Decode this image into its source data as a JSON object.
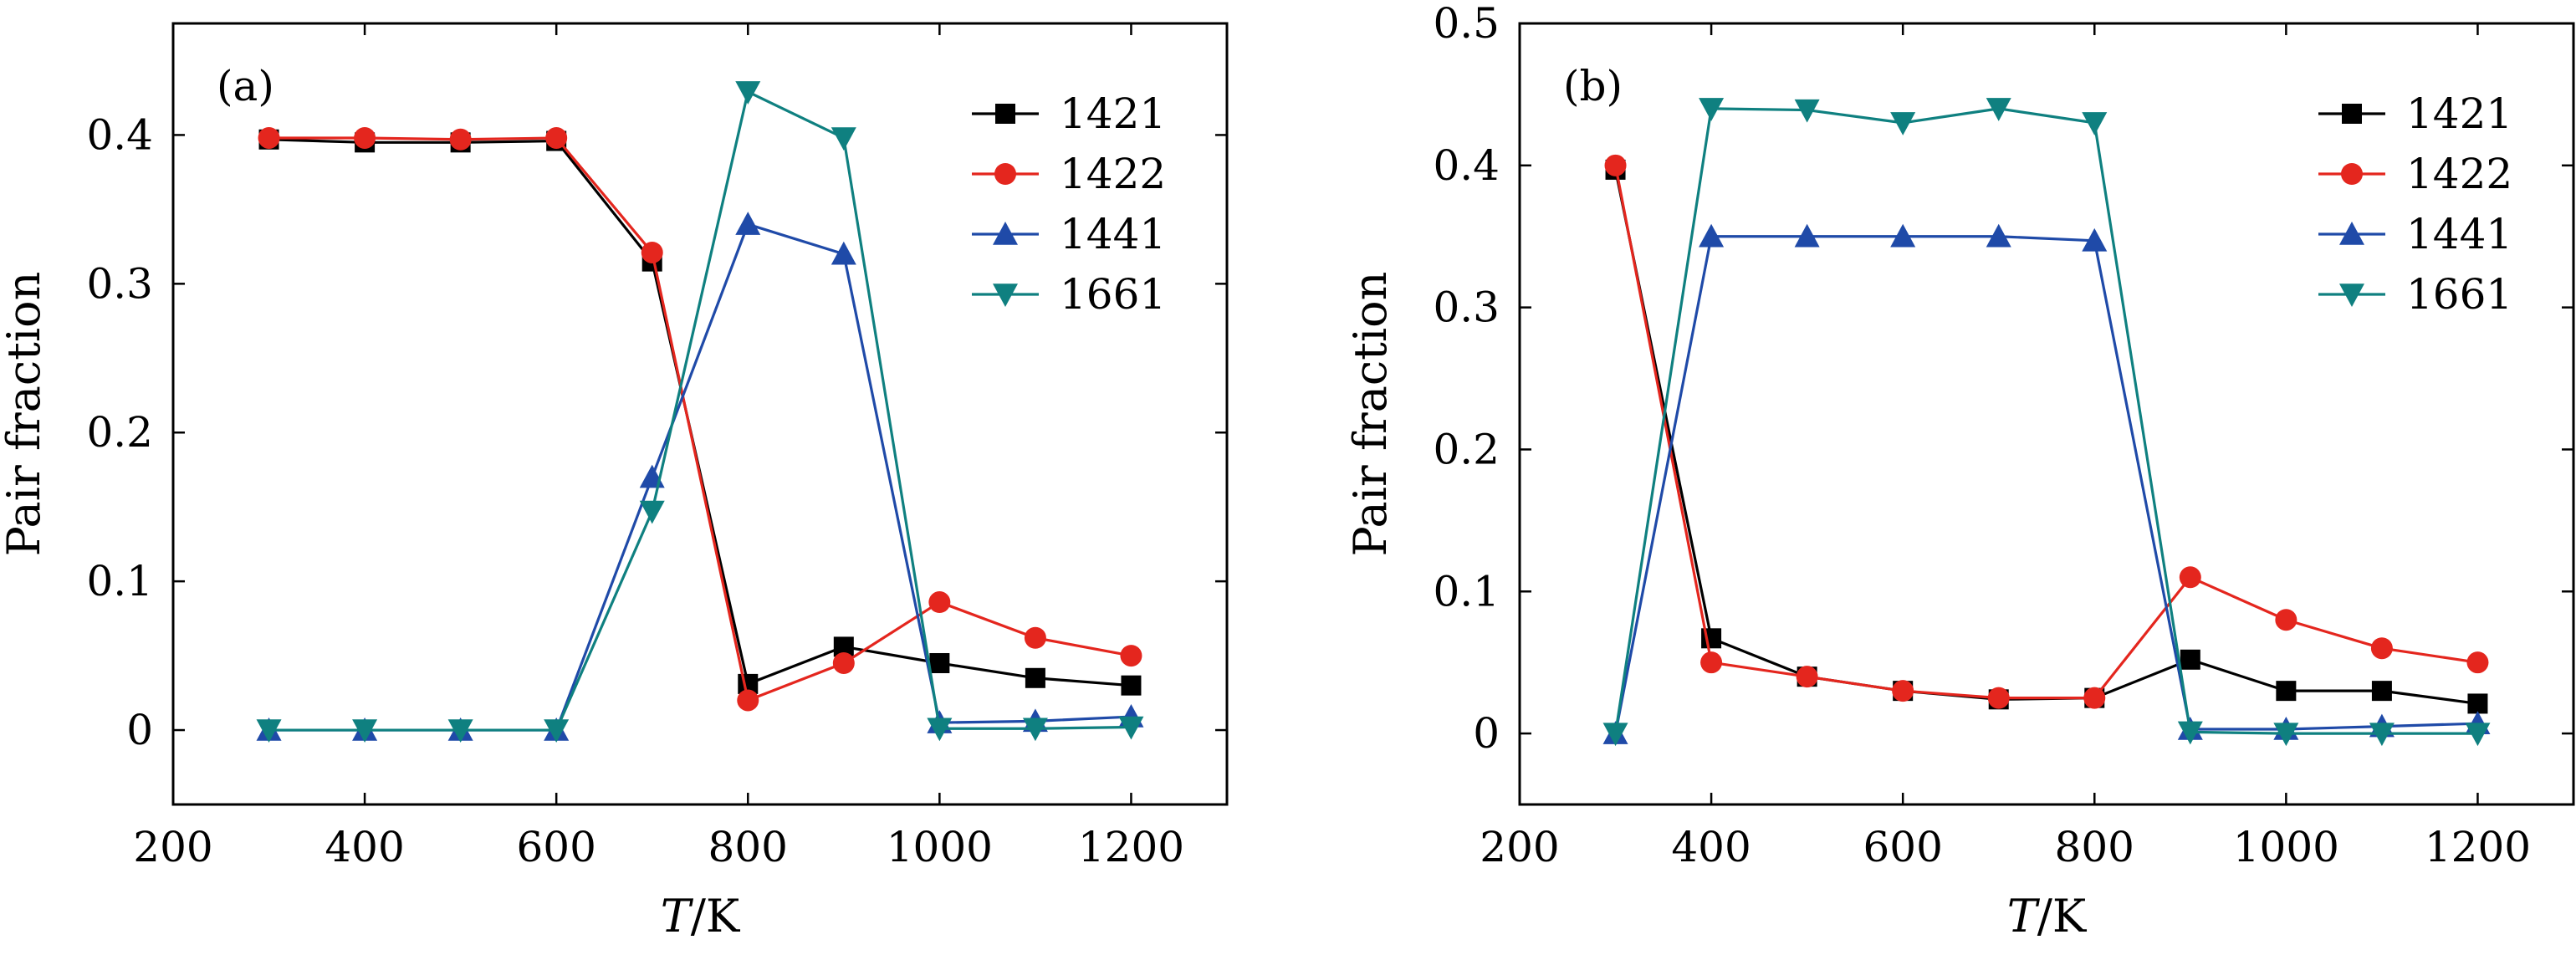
{
  "chart_data": [
    {
      "type": "line",
      "panel": "(a)",
      "xlabel_var": "T",
      "xlabel_unit": "/K",
      "ylabel": "Pair fraction",
      "xlim": [
        200,
        1300
      ],
      "ylim": [
        -0.05,
        0.475
      ],
      "xticks": [
        200,
        400,
        600,
        800,
        1000,
        1200
      ],
      "xtick_labels": [
        "200",
        "400",
        "600",
        "800",
        "1000",
        "1200"
      ],
      "yticks": [
        0,
        0.1,
        0.2,
        0.3,
        0.4
      ],
      "ytick_labels": [
        "0",
        "0.1",
        "0.2",
        "0.3",
        "0.4"
      ],
      "legend_position": "top-right",
      "x": [
        300,
        400,
        500,
        600,
        700,
        800,
        900,
        1000,
        1100,
        1200
      ],
      "series": [
        {
          "name": "1421",
          "color": "#000000",
          "marker": "square",
          "values": [
            0.397,
            0.395,
            0.395,
            0.396,
            0.315,
            0.031,
            0.056,
            0.045,
            0.035,
            0.03
          ]
        },
        {
          "name": "1422",
          "color": "#e4261e",
          "marker": "circle",
          "values": [
            0.398,
            0.398,
            0.397,
            0.398,
            0.321,
            0.02,
            0.045,
            0.086,
            0.062,
            0.05
          ]
        },
        {
          "name": "1441",
          "color": "#1f4aa8",
          "marker": "triangle-up",
          "values": [
            0.0,
            0.0,
            0.0,
            0.0,
            0.17,
            0.34,
            0.32,
            0.005,
            0.006,
            0.009
          ]
        },
        {
          "name": "1661",
          "color": "#0f8080",
          "marker": "triangle-down",
          "values": [
            0.0,
            0.0,
            0.0,
            0.0,
            0.147,
            0.429,
            0.398,
            0.001,
            0.001,
            0.002
          ]
        }
      ]
    },
    {
      "type": "line",
      "panel": "(b)",
      "xlabel_var": "T",
      "xlabel_unit": "/K",
      "ylabel": "Pair fraction",
      "xlim": [
        200,
        1300
      ],
      "ylim": [
        -0.05,
        0.5
      ],
      "xticks": [
        200,
        400,
        600,
        800,
        1000,
        1200
      ],
      "xtick_labels": [
        "200",
        "400",
        "600",
        "800",
        "1000",
        "1200"
      ],
      "yticks": [
        0,
        0.1,
        0.2,
        0.3,
        0.4,
        0.5
      ],
      "ytick_labels": [
        "0",
        "0.1",
        "0.2",
        "0.3",
        "0.4",
        "0.5"
      ],
      "legend_position": "top-right",
      "x": [
        300,
        400,
        500,
        600,
        700,
        800,
        900,
        1000,
        1100,
        1200
      ],
      "series": [
        {
          "name": "1421",
          "color": "#000000",
          "marker": "square",
          "values": [
            0.397,
            0.067,
            0.04,
            0.03,
            0.024,
            0.025,
            0.052,
            0.03,
            0.03,
            0.021
          ]
        },
        {
          "name": "1422",
          "color": "#e4261e",
          "marker": "circle",
          "values": [
            0.4,
            0.05,
            0.04,
            0.03,
            0.025,
            0.025,
            0.11,
            0.08,
            0.06,
            0.05
          ]
        },
        {
          "name": "1441",
          "color": "#1f4aa8",
          "marker": "triangle-up",
          "values": [
            0.0,
            0.35,
            0.35,
            0.35,
            0.35,
            0.347,
            0.003,
            0.003,
            0.005,
            0.007
          ]
        },
        {
          "name": "1661",
          "color": "#0f8080",
          "marker": "triangle-down",
          "values": [
            0.0,
            0.44,
            0.439,
            0.43,
            0.44,
            0.43,
            0.001,
            0.0,
            0.0,
            0.0
          ]
        }
      ]
    }
  ]
}
